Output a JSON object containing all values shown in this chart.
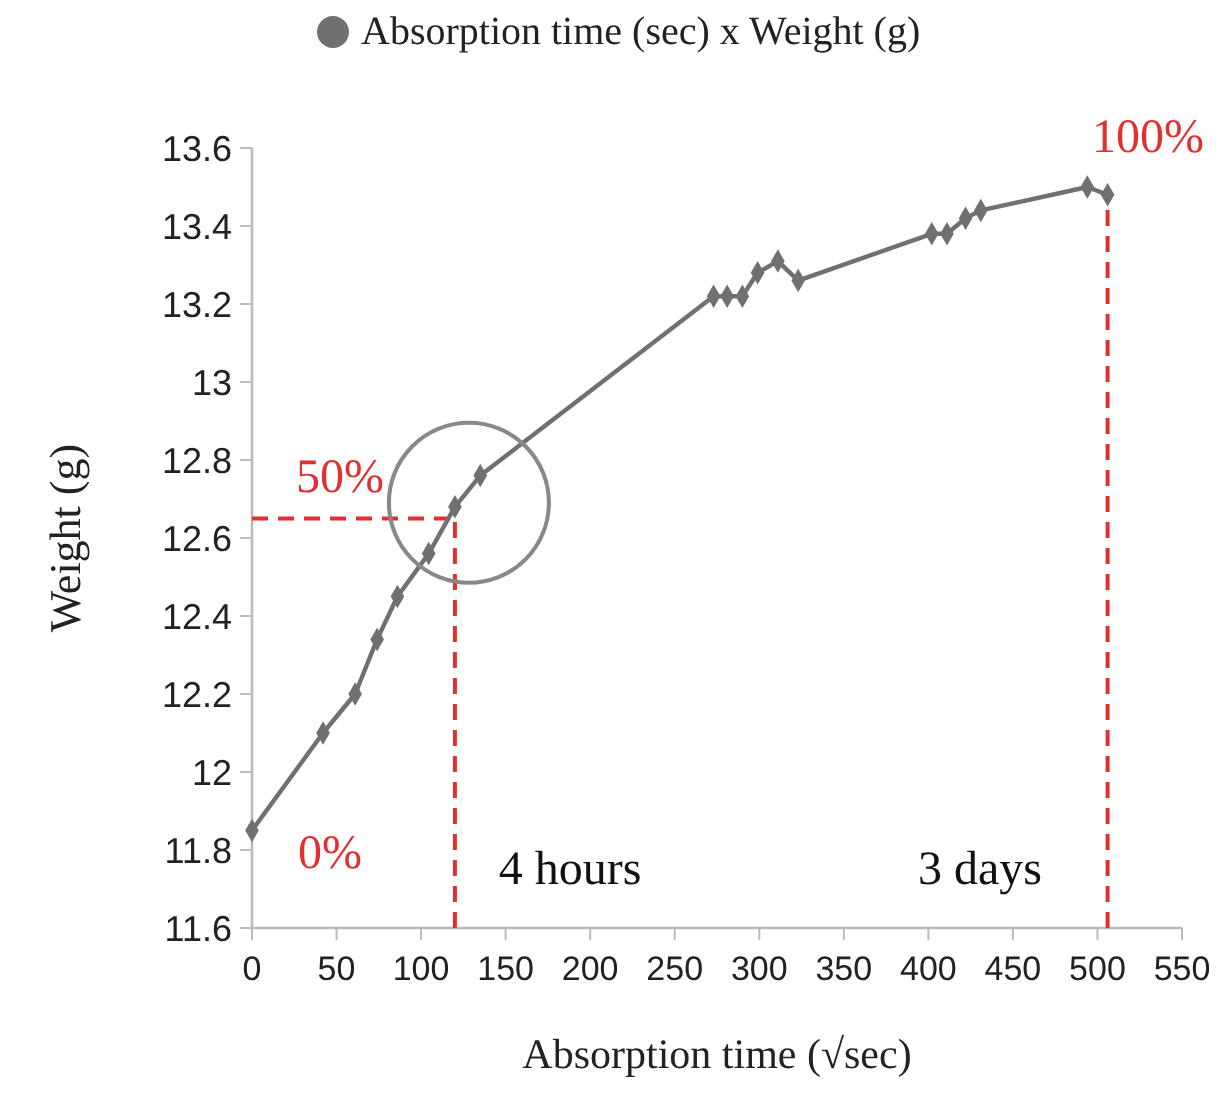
{
  "chart_data": {
    "type": "line",
    "xlabel": "Absorption  time (√sec)",
    "ylabel": "Weight (g)",
    "x": [
      0,
      42,
      61,
      74,
      86,
      104.5,
      120,
      135,
      273,
      281,
      290,
      299,
      311,
      323,
      402,
      411,
      422,
      431,
      494,
      506
    ],
    "series": [
      {
        "name": "Absorption  time (sec) x Weight (g)",
        "color": "#707070",
        "values": [
          11.85,
          12.1,
          12.2,
          12.34,
          12.45,
          12.56,
          12.68,
          12.76,
          13.22,
          13.22,
          13.22,
          13.28,
          13.31,
          13.26,
          13.38,
          13.38,
          13.42,
          13.44,
          13.5,
          13.48
        ]
      }
    ],
    "xlim": [
      0,
      550
    ],
    "xticks": [
      0,
      50,
      100,
      150,
      200,
      250,
      300,
      350,
      400,
      450,
      500,
      550
    ],
    "ylim": [
      11.6,
      13.6
    ],
    "yticks": [
      11.6,
      11.8,
      12,
      12.2,
      12.4,
      12.6,
      12.8,
      13,
      13.2,
      13.4,
      13.6
    ],
    "ref_lines": [
      {
        "axis": "y",
        "value": 12.65,
        "color": "#e03030",
        "line_style": "dashed"
      },
      {
        "axis": "x",
        "value": 120,
        "color": "#e03030",
        "line_style": "dashed"
      },
      {
        "axis": "x",
        "value": 506,
        "color": "#e03030",
        "line_style": "dashed"
      }
    ],
    "annotations": [
      "0%",
      "50%",
      "100%",
      "4 hours",
      "3 days"
    ],
    "legend": "top",
    "marker": "diamond",
    "line_style": "solid",
    "grid": false
  }
}
